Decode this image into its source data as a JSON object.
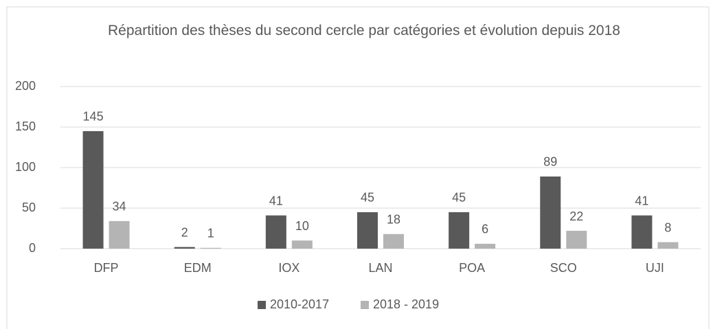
{
  "chart_data": {
    "type": "bar",
    "title": "Répartition des thèses du second cercle par catégories et évolution depuis 2018",
    "categories": [
      "DFP",
      "EDM",
      "IOX",
      "LAN",
      "POA",
      "SCO",
      "UJI"
    ],
    "series": [
      {
        "name": "2010-2017",
        "color": "#595959",
        "values": [
          145,
          2,
          41,
          45,
          45,
          89,
          41
        ]
      },
      {
        "name": "2018 - 2019",
        "color": "#b4b4b4",
        "values": [
          34,
          1,
          10,
          18,
          6,
          22,
          8
        ]
      }
    ],
    "ylim": [
      0,
      200
    ],
    "yticks": [
      0,
      50,
      100,
      150,
      200
    ],
    "grid": true,
    "legend": "bottom"
  }
}
